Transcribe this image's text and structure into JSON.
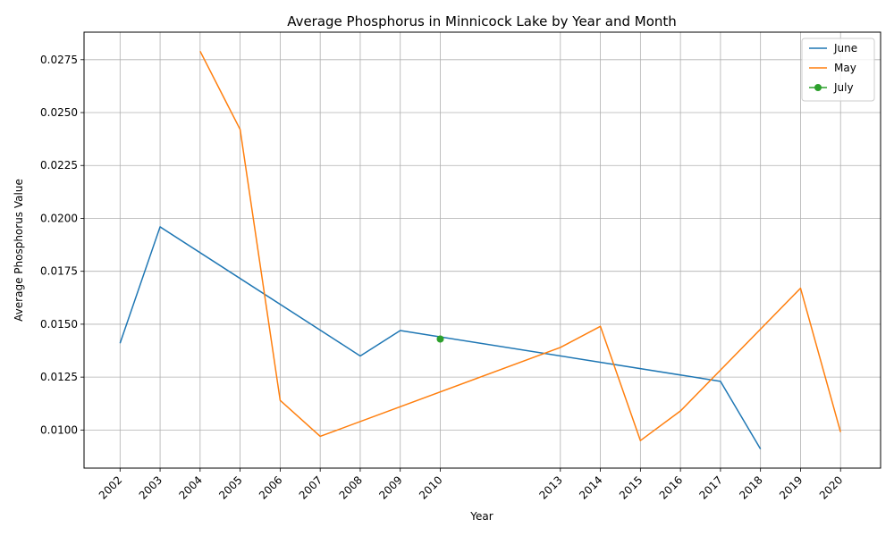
{
  "chart_data": {
    "type": "line",
    "title": "Average Phosphorus in Minnicock Lake by Year and Month",
    "xlabel": "Year",
    "ylabel": "Average Phosphorus Value",
    "xlim": [
      2001.1,
      2021.0
    ],
    "ylim": [
      0.0082,
      0.0288
    ],
    "x_ticks": [
      2002,
      2003,
      2004,
      2005,
      2006,
      2007,
      2008,
      2009,
      2010,
      2013,
      2014,
      2015,
      2016,
      2017,
      2018,
      2019,
      2020
    ],
    "y_ticks": [
      0.01,
      0.0125,
      0.015,
      0.0175,
      0.02,
      0.0225,
      0.025,
      0.0275
    ],
    "y_tick_labels": [
      "0.0100",
      "0.0125",
      "0.0150",
      "0.0175",
      "0.0200",
      "0.0225",
      "0.0250",
      "0.0275"
    ],
    "grid": true,
    "legend_position": "top-right",
    "series": [
      {
        "name": "June",
        "color": "#1f77b4",
        "marker": "none",
        "x": [
          2002,
          2003,
          2008,
          2009,
          2010,
          2017,
          2018
        ],
        "y": [
          0.0141,
          0.0196,
          0.0135,
          0.0147,
          0.0144,
          0.0123,
          0.0091
        ]
      },
      {
        "name": "May",
        "color": "#ff7f0e",
        "marker": "none",
        "x": [
          2004,
          2005,
          2006,
          2007,
          2013,
          2014,
          2015,
          2016,
          2019,
          2020
        ],
        "y": [
          0.0279,
          0.0242,
          0.0114,
          0.0097,
          0.0139,
          0.0149,
          0.0095,
          0.0109,
          0.0167,
          0.0099
        ]
      },
      {
        "name": "July",
        "color": "#2ca02c",
        "marker": "circle",
        "x": [
          2010
        ],
        "y": [
          0.0143
        ]
      }
    ]
  }
}
